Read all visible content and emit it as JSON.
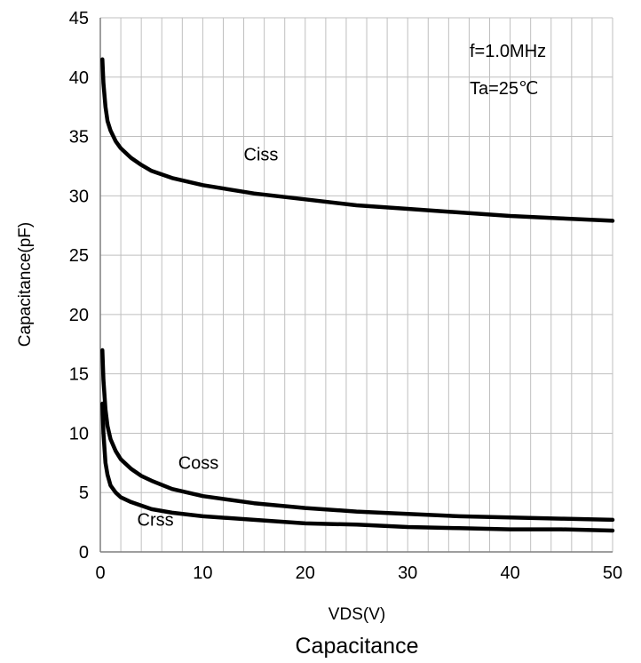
{
  "chart_data": {
    "type": "line",
    "title": "Capacitance",
    "xlabel": "VDS(V)",
    "ylabel": "Capacitance(pF)",
    "xlim": [
      0,
      50
    ],
    "ylim": [
      0,
      45
    ],
    "x_ticks": [
      "0",
      "10",
      "20",
      "30",
      "40",
      "50"
    ],
    "y_ticks": [
      "0",
      "5",
      "10",
      "15",
      "20",
      "25",
      "30",
      "35",
      "40",
      "45"
    ],
    "x_minor_step": 2,
    "y_major_step": 5,
    "grid": true,
    "annotations": [
      "f=1.0MHz",
      "Ta=25℃"
    ],
    "series": [
      {
        "name": "Ciss",
        "x": [
          0.2,
          0.3,
          0.5,
          0.7,
          1,
          1.5,
          2,
          3,
          4,
          5,
          7,
          10,
          15,
          20,
          25,
          30,
          35,
          40,
          45,
          50
        ],
        "y": [
          41.5,
          39.5,
          37.5,
          36.3,
          35.5,
          34.6,
          34.0,
          33.2,
          32.6,
          32.1,
          31.5,
          30.9,
          30.2,
          29.7,
          29.2,
          28.9,
          28.6,
          28.3,
          28.1,
          27.9
        ]
      },
      {
        "name": "Coss",
        "x": [
          0.2,
          0.3,
          0.5,
          0.7,
          1,
          1.5,
          2,
          3,
          4,
          5,
          7,
          10,
          15,
          20,
          25,
          30,
          35,
          40,
          45,
          50
        ],
        "y": [
          17.0,
          14.5,
          12.0,
          10.6,
          9.5,
          8.5,
          7.8,
          7.0,
          6.4,
          6.0,
          5.3,
          4.7,
          4.1,
          3.7,
          3.4,
          3.2,
          3.0,
          2.9,
          2.8,
          2.7
        ]
      },
      {
        "name": "Crss",
        "x": [
          0.2,
          0.3,
          0.5,
          0.7,
          1,
          1.5,
          2,
          3,
          4,
          5,
          7,
          10,
          15,
          20,
          25,
          30,
          35,
          40,
          45,
          50
        ],
        "y": [
          12.5,
          10.0,
          7.5,
          6.5,
          5.6,
          5.0,
          4.6,
          4.2,
          3.9,
          3.6,
          3.3,
          3.0,
          2.7,
          2.4,
          2.3,
          2.1,
          2.0,
          1.9,
          1.9,
          1.8
        ]
      }
    ],
    "series_labels": [
      {
        "text": "Ciss",
        "at_x": 14,
        "at_y": 33.0
      },
      {
        "text": "Coss",
        "at_x": 7.6,
        "at_y": 7.0
      },
      {
        "text": "Crss",
        "at_x": 3.6,
        "at_y": 2.2
      }
    ]
  }
}
